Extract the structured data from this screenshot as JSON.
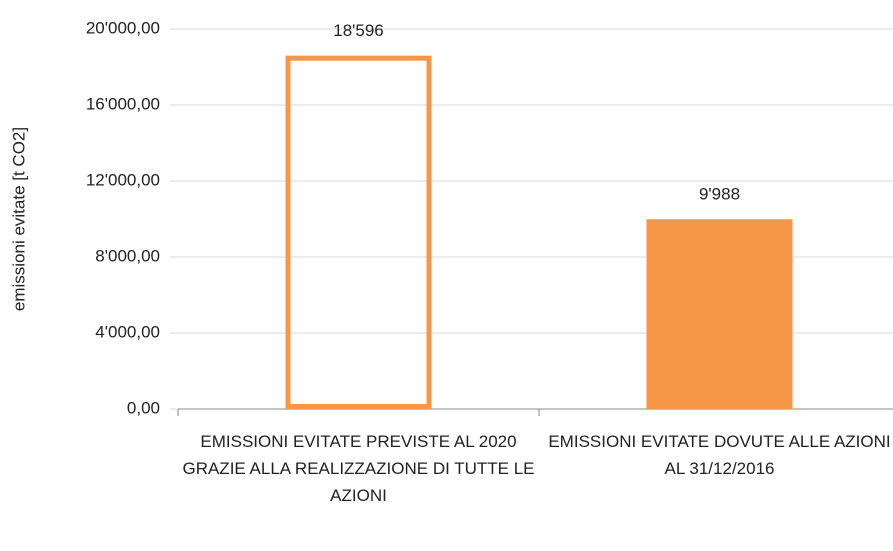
{
  "chart_data": {
    "type": "bar",
    "categories": [
      "EMISSIONI EVITATE PREVISTE AL 2020 GRAZIE ALLA REALIZZAZIONE DI TUTTE LE AZIONI",
      "EMISSIONI EVITATE DOVUTE ALLE AZIONI AL 31/12/2016"
    ],
    "values": [
      18596,
      9988
    ],
    "value_labels": [
      "18'596",
      "9'988"
    ],
    "bar_styles": [
      "outline",
      "filled"
    ],
    "color": "#f79646",
    "y_label": "emissioni evitate [t CO2]",
    "ylim": [
      0,
      20000
    ],
    "yticks": [
      {
        "value": 0,
        "label": "0,00"
      },
      {
        "value": 4000,
        "label": "4'000,00"
      },
      {
        "value": 8000,
        "label": "8'000,00"
      },
      {
        "value": 12000,
        "label": "12'000,00"
      },
      {
        "value": 16000,
        "label": "16'000,00"
      },
      {
        "value": 20000,
        "label": "20'000,00"
      }
    ],
    "grid": true
  }
}
